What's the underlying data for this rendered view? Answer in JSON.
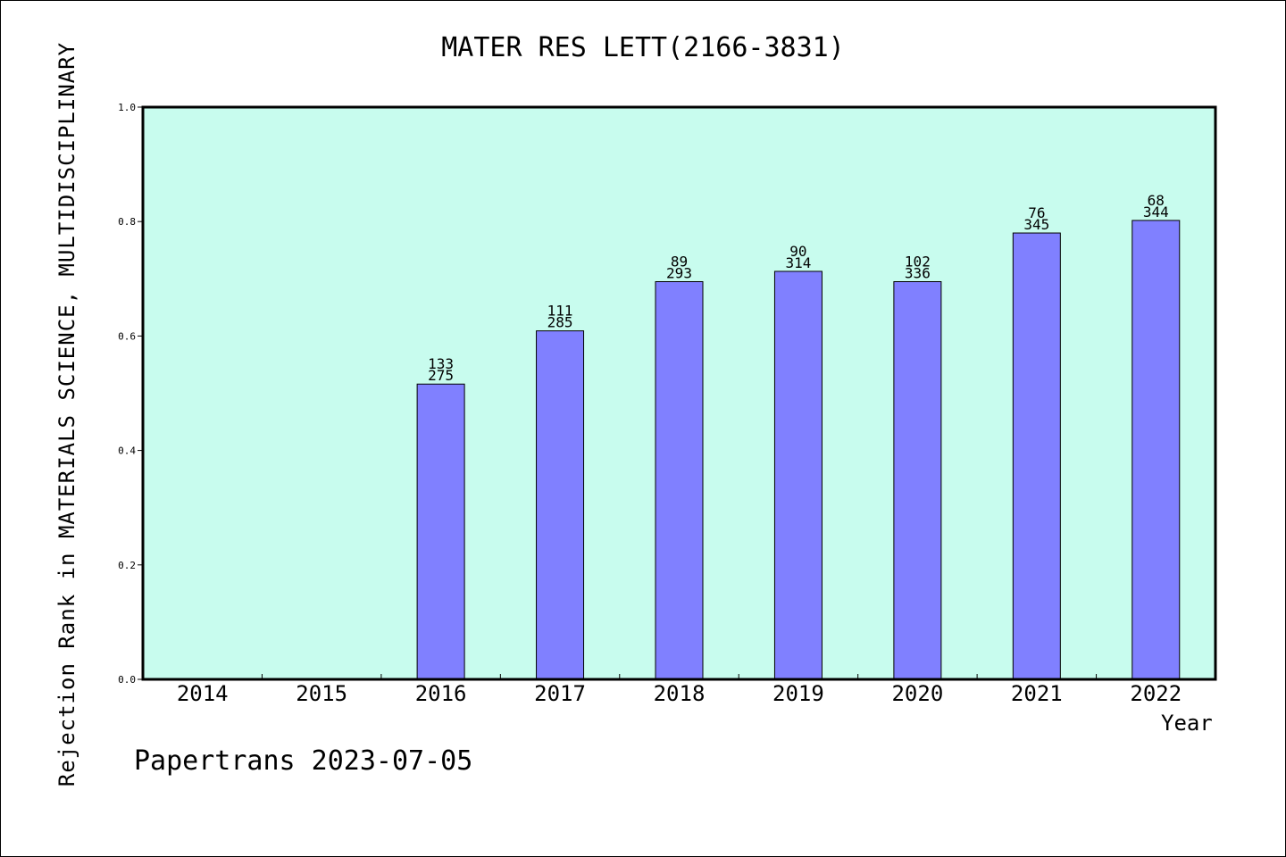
{
  "chart_data": {
    "type": "bar",
    "title": "MATER RES LETT(2166-3831)",
    "xlabel": "Year",
    "ylabel": "Rejection Rank in MATERIALS SCIENCE, MULTIDISCIPLINARY",
    "categories": [
      "2014",
      "2015",
      "2016",
      "2017",
      "2018",
      "2019",
      "2020",
      "2021",
      "2022"
    ],
    "values": [
      null,
      null,
      0.516,
      0.609,
      0.695,
      0.713,
      0.695,
      0.78,
      0.802
    ],
    "bar_labels_top": [
      "",
      "",
      "133",
      "111",
      "89",
      "90",
      "102",
      "76",
      "68"
    ],
    "bar_labels_bottom": [
      "",
      "",
      "275",
      "285",
      "293",
      "314",
      "336",
      "345",
      "344"
    ],
    "ylim": [
      0.0,
      1.0
    ],
    "yticks": [
      "0.0",
      "0.2",
      "0.4",
      "0.6",
      "0.8",
      "1.0"
    ],
    "grid": false,
    "colors": {
      "plot_background": "#c8fcee",
      "bar_fill": "#8080ff",
      "bar_stroke": "#000000"
    }
  },
  "footer": {
    "credit": "Papertrans 2023-07-05"
  }
}
